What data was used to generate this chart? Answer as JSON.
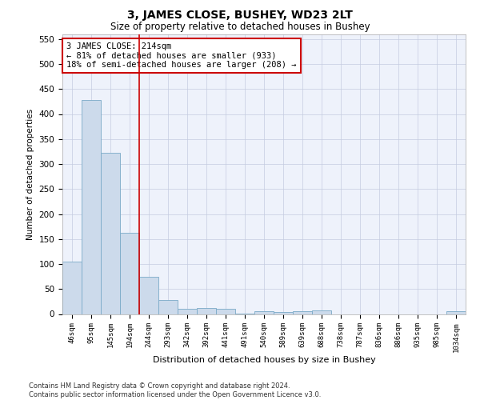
{
  "title": "3, JAMES CLOSE, BUSHEY, WD23 2LT",
  "subtitle": "Size of property relative to detached houses in Bushey",
  "xlabel": "Distribution of detached houses by size in Bushey",
  "ylabel": "Number of detached properties",
  "categories": [
    "46sqm",
    "95sqm",
    "145sqm",
    "194sqm",
    "244sqm",
    "293sqm",
    "342sqm",
    "392sqm",
    "441sqm",
    "491sqm",
    "540sqm",
    "589sqm",
    "639sqm",
    "688sqm",
    "738sqm",
    "787sqm",
    "836sqm",
    "886sqm",
    "935sqm",
    "985sqm",
    "1034sqm"
  ],
  "values": [
    105,
    428,
    322,
    163,
    75,
    28,
    11,
    12,
    10,
    1,
    5,
    4,
    5,
    7,
    0,
    0,
    0,
    0,
    0,
    0,
    5
  ],
  "bar_color": "#ccdaeb",
  "bar_edge_color": "#7aaac8",
  "vline_color": "#cc0000",
  "vline_pos": 3.5,
  "annotation_text": "3 JAMES CLOSE: 214sqm\n← 81% of detached houses are smaller (933)\n18% of semi-detached houses are larger (208) →",
  "annotation_box_color": "#cc0000",
  "ylim": [
    0,
    560
  ],
  "yticks": [
    0,
    50,
    100,
    150,
    200,
    250,
    300,
    350,
    400,
    450,
    500,
    550
  ],
  "footer": "Contains HM Land Registry data © Crown copyright and database right 2024.\nContains public sector information licensed under the Open Government Licence v3.0.",
  "bg_color": "#eef2fb",
  "grid_color": "#c5cce0"
}
